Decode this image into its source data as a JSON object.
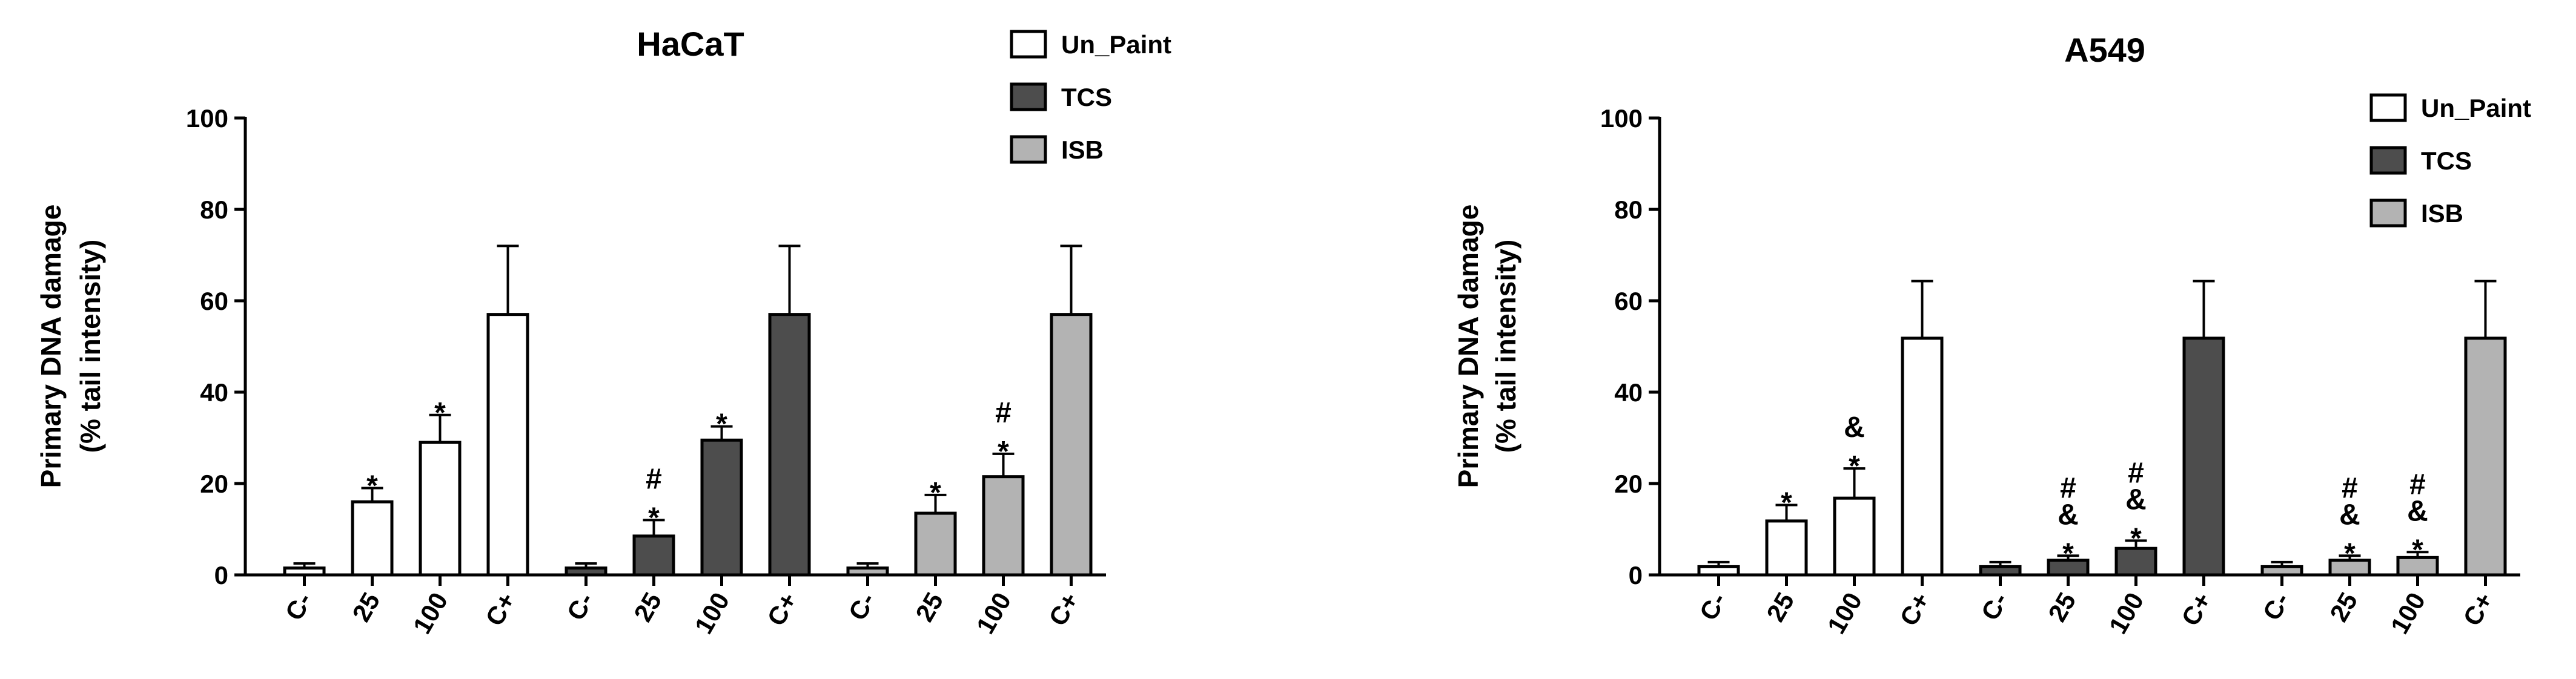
{
  "chart_data": [
    {
      "type": "bar",
      "title": "HaCaT",
      "ylabel": [
        "Primary DNA damage",
        "(% tail intensity)"
      ],
      "ylim": [
        0,
        100
      ],
      "yticks": [
        "0",
        "20",
        "40",
        "60",
        "80",
        "100"
      ],
      "categories": [
        "C-",
        "25",
        "100",
        "C+"
      ],
      "groups": [
        {
          "name": "Un_Paint",
          "color": "#ffffff",
          "values": [
            1.5,
            16,
            29,
            57
          ],
          "errors": [
            1,
            3,
            6,
            15
          ],
          "marks": [
            "",
            "*",
            "*",
            ""
          ]
        },
        {
          "name": "TCS",
          "color": "#4d4d4d",
          "values": [
            1.5,
            8.5,
            29.5,
            57
          ],
          "errors": [
            1,
            3.5,
            3,
            15
          ],
          "marks": [
            "",
            "#\n*",
            "*",
            ""
          ]
        },
        {
          "name": "ISB",
          "color": "#b3b3b3",
          "values": [
            1.5,
            13.5,
            21.5,
            57
          ],
          "errors": [
            1,
            4,
            5,
            15
          ],
          "marks": [
            "",
            "*",
            "#\n*",
            ""
          ]
        }
      ],
      "legend": [
        "Un_Paint",
        "TCS",
        "ISB"
      ],
      "legend_position": "top-right"
    },
    {
      "type": "bar",
      "title": "A549",
      "ylabel": [
        "Primary DNA damage",
        "(% tail intensity)"
      ],
      "ylim": [
        0,
        100
      ],
      "yticks": [
        "0",
        "20",
        "40",
        "60",
        "80",
        "100"
      ],
      "categories": [
        "C-",
        "25",
        "100",
        "C+"
      ],
      "groups": [
        {
          "name": "Un_Paint",
          "color": "#ffffff",
          "values": [
            1.8,
            11.8,
            16.8,
            51.8
          ],
          "errors": [
            1,
            3.5,
            6.5,
            12.5
          ],
          "marks": [
            "",
            "*",
            "&\n*",
            ""
          ]
        },
        {
          "name": "TCS",
          "color": "#4d4d4d",
          "values": [
            1.8,
            3.2,
            5.8,
            51.8
          ],
          "errors": [
            1,
            1,
            1.7,
            12.5
          ],
          "marks": [
            "",
            "#\n&\n*",
            "#\n&\n*",
            ""
          ]
        },
        {
          "name": "ISB",
          "color": "#b3b3b3",
          "values": [
            1.8,
            3.2,
            3.8,
            51.8
          ],
          "errors": [
            1,
            1,
            1.2,
            12.5
          ],
          "marks": [
            "",
            "#\n&\n*",
            "#\n&\n*",
            ""
          ]
        }
      ],
      "legend": [
        "Un_Paint",
        "TCS",
        "ISB"
      ],
      "legend_position": "top-right"
    }
  ]
}
